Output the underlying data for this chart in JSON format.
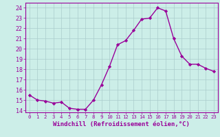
{
  "x": [
    0,
    1,
    2,
    3,
    4,
    5,
    6,
    7,
    8,
    9,
    10,
    11,
    12,
    13,
    14,
    15,
    16,
    17,
    18,
    19,
    20,
    21,
    22,
    23
  ],
  "y": [
    15.5,
    15.0,
    14.9,
    14.7,
    14.8,
    14.2,
    14.1,
    14.1,
    15.0,
    16.5,
    18.3,
    20.4,
    20.8,
    21.8,
    22.9,
    23.0,
    24.0,
    23.7,
    21.0,
    19.3,
    18.5,
    18.5,
    18.1,
    17.8
  ],
  "line_color": "#990099",
  "marker": "D",
  "marker_size": 2.2,
  "linewidth": 1.0,
  "xlabel": "Windchill (Refroidissement éolien,°C)",
  "xlabel_fontsize": 6.5,
  "xtick_labels": [
    "0",
    "1",
    "2",
    "3",
    "4",
    "5",
    "6",
    "7",
    "8",
    "9",
    "10",
    "11",
    "12",
    "13",
    "14",
    "15",
    "16",
    "17",
    "18",
    "19",
    "20",
    "21",
    "22",
    "23"
  ],
  "ylim": [
    13.8,
    24.5
  ],
  "yticks": [
    14,
    15,
    16,
    17,
    18,
    19,
    20,
    21,
    22,
    23,
    24
  ],
  "ytick_fontsize": 6,
  "xtick_fontsize": 5.2,
  "background_color": "#cceee8",
  "grid_color": "#aacccc",
  "grid_linewidth": 0.5
}
